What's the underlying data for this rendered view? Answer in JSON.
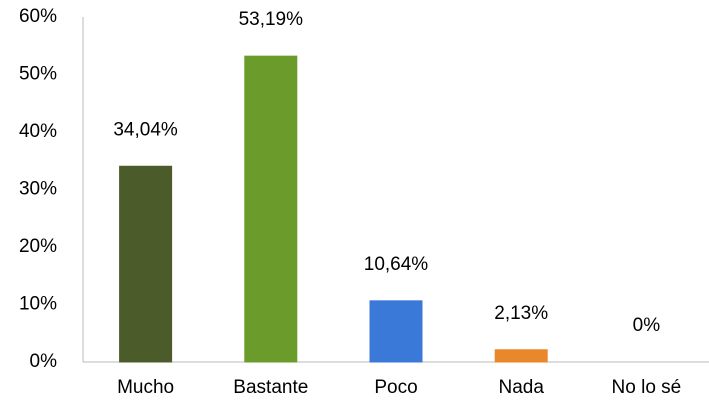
{
  "chart_data": {
    "type": "bar",
    "categories": [
      "Mucho",
      "Bastante",
      "Poco",
      "Nada",
      "No lo sé"
    ],
    "values": [
      34.04,
      53.19,
      10.64,
      2.13,
      0
    ],
    "value_labels": [
      "34,04%",
      "53,19%",
      "10,64%",
      "2,13%",
      "0%"
    ],
    "colors": [
      "#4b5b29",
      "#6b9b2b",
      "#3b79d9",
      "#e9872b",
      "#999999"
    ],
    "ylim": [
      0,
      60
    ],
    "yticks": [
      {
        "value": 0,
        "label": "0%"
      },
      {
        "value": 10,
        "label": "10%"
      },
      {
        "value": 20,
        "label": "20%"
      },
      {
        "value": 30,
        "label": "30%"
      },
      {
        "value": 40,
        "label": "40%"
      },
      {
        "value": 50,
        "label": "50%"
      },
      {
        "value": 60,
        "label": "60%"
      }
    ],
    "grid": false
  }
}
